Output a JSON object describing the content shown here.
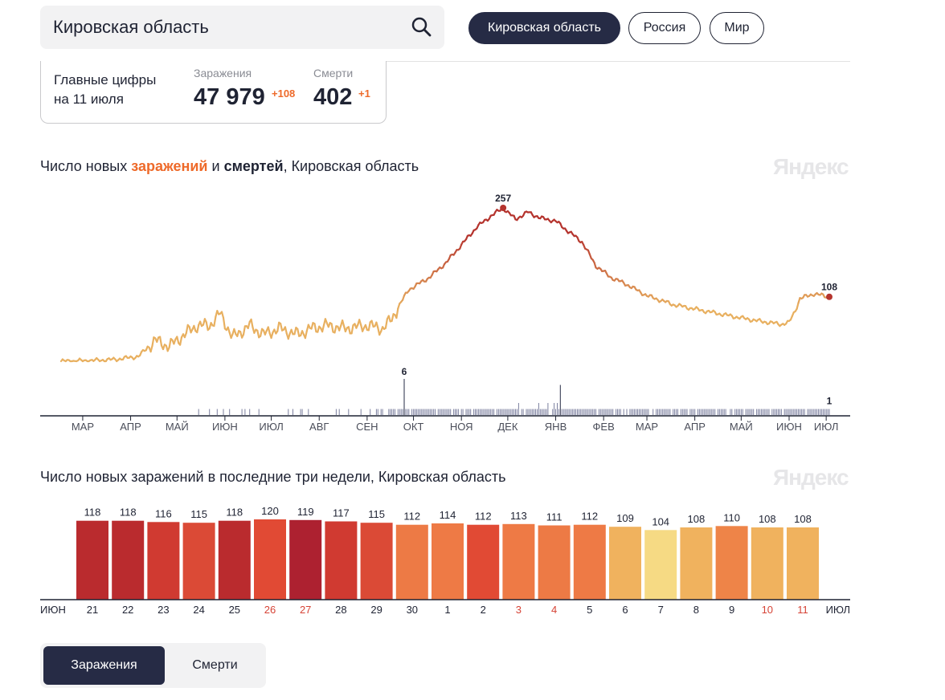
{
  "search": {
    "value": "Кировская область"
  },
  "region_tabs": [
    {
      "label": "Кировская область",
      "active": true
    },
    {
      "label": "Россия",
      "active": false
    },
    {
      "label": "Мир",
      "active": false
    }
  ],
  "summary": {
    "label_line1": "Главные цифры",
    "label_line2": "на 11 июля",
    "infections": {
      "title": "Заражения",
      "value": "47 979",
      "delta": "+108"
    },
    "deaths": {
      "title": "Смерти",
      "value": "402",
      "delta": "+1"
    }
  },
  "watermark": "Яндекс",
  "colors": {
    "accent": "#ee6a2a",
    "dark": "#262b45",
    "deaths_bars": "#7b7f9e",
    "peak_line": "#b5342e",
    "low_line": "#e8b060"
  },
  "chart_data": [
    {
      "type": "line",
      "title_parts": [
        "Число новых ",
        "заражений",
        " и ",
        "смертей",
        ", Кировская область"
      ],
      "x_tick_labels": [
        "МАР",
        "АПР",
        "МАЙ",
        "ИЮН",
        "ИЮЛ",
        "АВГ",
        "СЕН",
        "ОКТ",
        "НОЯ",
        "ДЕК",
        "ЯНВ",
        "ФЕВ",
        "МАР",
        "АПР",
        "МАЙ",
        "ИЮН",
        "ИЮЛ"
      ],
      "series": [
        {
          "name": "заражений",
          "points": [
            [
              "2020-03-01",
              0
            ],
            [
              "2020-03-20",
              1
            ],
            [
              "2020-04-05",
              3
            ],
            [
              "2020-04-20",
              8
            ],
            [
              "2020-05-01",
              35
            ],
            [
              "2020-05-10",
              25
            ],
            [
              "2020-05-20",
              45
            ],
            [
              "2020-05-28",
              60
            ],
            [
              "2020-06-05",
              60
            ],
            [
              "2020-06-12",
              80
            ],
            [
              "2020-06-20",
              40
            ],
            [
              "2020-07-01",
              60
            ],
            [
              "2020-07-10",
              45
            ],
            [
              "2020-07-20",
              55
            ],
            [
              "2020-08-01",
              45
            ],
            [
              "2020-08-10",
              55
            ],
            [
              "2020-08-20",
              60
            ],
            [
              "2020-09-01",
              55
            ],
            [
              "2020-09-15",
              60
            ],
            [
              "2020-09-25",
              55
            ],
            [
              "2020-10-01",
              70
            ],
            [
              "2020-10-06",
              95
            ],
            [
              "2020-10-12",
              120
            ],
            [
              "2020-10-25",
              140
            ],
            [
              "2020-11-05",
              165
            ],
            [
              "2020-11-15",
              195
            ],
            [
              "2020-11-25",
              225
            ],
            [
              "2020-12-05",
              245
            ],
            [
              "2020-12-12",
              257
            ],
            [
              "2020-12-20",
              238
            ],
            [
              "2020-12-28",
              250
            ],
            [
              "2021-01-05",
              240
            ],
            [
              "2021-01-15",
              235
            ],
            [
              "2021-01-22",
              220
            ],
            [
              "2021-02-01",
              200
            ],
            [
              "2021-02-10",
              160
            ],
            [
              "2021-02-20",
              140
            ],
            [
              "2021-03-01",
              130
            ],
            [
              "2021-03-15",
              110
            ],
            [
              "2021-04-01",
              95
            ],
            [
              "2021-04-20",
              85
            ],
            [
              "2021-05-10",
              75
            ],
            [
              "2021-05-25",
              68
            ],
            [
              "2021-06-10",
              62
            ],
            [
              "2021-06-15",
              65
            ],
            [
              "2021-06-19",
              85
            ],
            [
              "2021-06-22",
              105
            ],
            [
              "2021-07-01",
              113
            ],
            [
              "2021-07-11",
              108
            ]
          ],
          "peak_label": "257",
          "last_label": "108"
        },
        {
          "name": "смертей",
          "summary": "daily deaths, mostly 0–2, peaks of 6 in October 2020 and January 2021",
          "peak_label": "6",
          "last_label": "1"
        }
      ],
      "ylim": [
        0,
        270
      ]
    },
    {
      "type": "bar",
      "title": "Число новых заражений в последние три недели, Кировская область",
      "categories": [
        "21",
        "22",
        "23",
        "24",
        "25",
        "26",
        "27",
        "28",
        "29",
        "30",
        "1",
        "2",
        "3",
        "4",
        "5",
        "6",
        "7",
        "8",
        "9",
        "10",
        "11"
      ],
      "month_start": "ИЮН",
      "month_end": "ИЮЛ",
      "weekend_days": [
        "26",
        "27",
        "3",
        "4",
        "10",
        "11"
      ],
      "values": [
        118,
        118,
        116,
        115,
        118,
        120,
        119,
        117,
        115,
        112,
        114,
        112,
        113,
        111,
        112,
        109,
        104,
        108,
        110,
        108,
        108
      ],
      "ylim": [
        0,
        120
      ]
    }
  ],
  "mode_tabs": [
    {
      "label": "Заражения",
      "active": true
    },
    {
      "label": "Смерти",
      "active": false
    }
  ]
}
